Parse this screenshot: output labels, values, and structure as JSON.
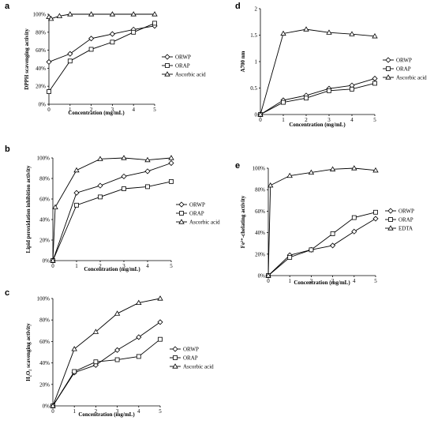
{
  "chart_data": [
    {
      "panel": "a",
      "type": "line",
      "x": [
        0,
        1,
        2,
        3,
        4,
        5
      ],
      "xlabel": "Concentration (mg/mL)",
      "ylabel": "DPPH scavenging activity",
      "ylim": [
        0,
        100
      ],
      "yticks": [
        "0%",
        "20%",
        "40%",
        "60%",
        "80%",
        "100%"
      ],
      "xticks": [
        "0",
        "1",
        "2",
        "3",
        "4",
        "5"
      ],
      "legend_position": "right",
      "series": [
        {
          "name": "ORWP",
          "marker": "diamond",
          "x": [
            0,
            1,
            2,
            3,
            4,
            5
          ],
          "values": [
            47,
            56,
            73,
            78,
            83,
            87
          ]
        },
        {
          "name": "ORAP",
          "marker": "square",
          "x": [
            0,
            1,
            2,
            3,
            4,
            5
          ],
          "values": [
            14,
            48,
            61,
            69,
            80,
            90
          ]
        },
        {
          "name": "Ascorbic acid",
          "marker": "triangle",
          "x": [
            0,
            0.1,
            0.5,
            1,
            2,
            3,
            4,
            5
          ],
          "values": [
            97,
            95,
            98,
            100,
            100,
            100,
            100,
            100
          ]
        }
      ]
    },
    {
      "panel": "b",
      "type": "line",
      "x": [
        0,
        1,
        2,
        3,
        4,
        5
      ],
      "xlabel": "Concentration (mg/mL)",
      "ylabel": "Lipid peroxidation inhibition activity",
      "ylim": [
        0,
        100
      ],
      "yticks": [
        "0%",
        "20%",
        "40%",
        "60%",
        "80%",
        "100%"
      ],
      "xticks": [
        "0",
        "1",
        "2",
        "3",
        "4",
        "5"
      ],
      "legend_position": "right",
      "series": [
        {
          "name": "ORWP",
          "marker": "diamond",
          "x": [
            0,
            1,
            2,
            3,
            4,
            5
          ],
          "values": [
            0,
            66,
            73,
            82,
            87,
            95
          ]
        },
        {
          "name": "ORAP",
          "marker": "square",
          "x": [
            0,
            1,
            2,
            3,
            4,
            5
          ],
          "values": [
            0,
            54,
            62,
            70,
            72,
            77
          ]
        },
        {
          "name": "Ascorbic acid",
          "marker": "triangle",
          "x": [
            0,
            0.1,
            1,
            2,
            3,
            4,
            5
          ],
          "values": [
            0,
            52,
            88,
            99,
            100,
            98,
            100
          ]
        }
      ]
    },
    {
      "panel": "c",
      "type": "line",
      "x": [
        0,
        1,
        2,
        3,
        4,
        5
      ],
      "xlabel": "Concentration (mg/mL)",
      "ylabel": "H₂O₂ scavenging activity",
      "ylim": [
        0,
        100
      ],
      "yticks": [
        "0%",
        "20%",
        "40%",
        "60%",
        "80%",
        "100%"
      ],
      "xticks": [
        "0",
        "1",
        "2",
        "3",
        "4",
        "5"
      ],
      "legend_position": "right",
      "series": [
        {
          "name": "ORWP",
          "marker": "diamond",
          "x": [
            0,
            1,
            2,
            3,
            4,
            5
          ],
          "values": [
            0,
            31,
            38,
            52,
            64,
            78
          ]
        },
        {
          "name": "ORAP",
          "marker": "square",
          "x": [
            0,
            1,
            2,
            3,
            4,
            5
          ],
          "values": [
            0,
            32,
            41,
            43,
            46,
            62
          ]
        },
        {
          "name": "Ascorbic acid",
          "marker": "triangle",
          "x": [
            0,
            1,
            2,
            3,
            4,
            5
          ],
          "values": [
            0,
            53,
            69,
            86,
            96,
            100
          ]
        }
      ]
    },
    {
      "panel": "d",
      "type": "line",
      "x": [
        0,
        1,
        2,
        3,
        4,
        5
      ],
      "xlabel": "Concentration (mg/mL)",
      "ylabel": "A700 nm",
      "ylim": [
        0,
        2
      ],
      "yticks": [
        "0",
        "0.5",
        "1",
        "1.5",
        "2"
      ],
      "xticks": [
        "0",
        "1",
        "2",
        "3",
        "4",
        "5"
      ],
      "legend_position": "right",
      "series": [
        {
          "name": "ORWP",
          "marker": "diamond",
          "x": [
            0,
            1,
            2,
            3,
            4,
            5
          ],
          "values": [
            0,
            0.27,
            0.36,
            0.49,
            0.55,
            0.68
          ]
        },
        {
          "name": "ORAP",
          "marker": "square",
          "x": [
            0,
            1,
            2,
            3,
            4,
            5
          ],
          "values": [
            0,
            0.23,
            0.31,
            0.45,
            0.48,
            0.59
          ]
        },
        {
          "name": "Ascorbic acid",
          "marker": "triangle",
          "x": [
            0,
            1,
            2,
            3,
            4,
            5
          ],
          "values": [
            0,
            1.53,
            1.61,
            1.55,
            1.52,
            1.48
          ]
        }
      ]
    },
    {
      "panel": "e",
      "type": "line",
      "x": [
        0,
        1,
        2,
        3,
        4,
        5
      ],
      "xlabel": "Concentration (mg/mL)",
      "ylabel": "Fe²⁺-chelating activity",
      "ylim": [
        0,
        100
      ],
      "yticks": [
        "0%",
        "20%",
        "40%",
        "60%",
        "80%",
        "100%"
      ],
      "xticks": [
        "0",
        "1",
        "2",
        "3",
        "4",
        "5"
      ],
      "legend_position": "right",
      "series": [
        {
          "name": "ORWP",
          "marker": "diamond",
          "x": [
            0,
            1,
            2,
            3,
            4,
            5
          ],
          "values": [
            0,
            19,
            24,
            28,
            41,
            53
          ]
        },
        {
          "name": "ORAP",
          "marker": "square",
          "x": [
            0,
            1,
            2,
            3,
            4,
            5
          ],
          "values": [
            0,
            17,
            24,
            39,
            54,
            59
          ]
        },
        {
          "name": "EDTA",
          "marker": "triangle",
          "x": [
            0,
            0.1,
            1,
            2,
            3,
            4,
            5
          ],
          "values": [
            0,
            84,
            93,
            96,
            99,
            100,
            98
          ]
        }
      ]
    }
  ]
}
